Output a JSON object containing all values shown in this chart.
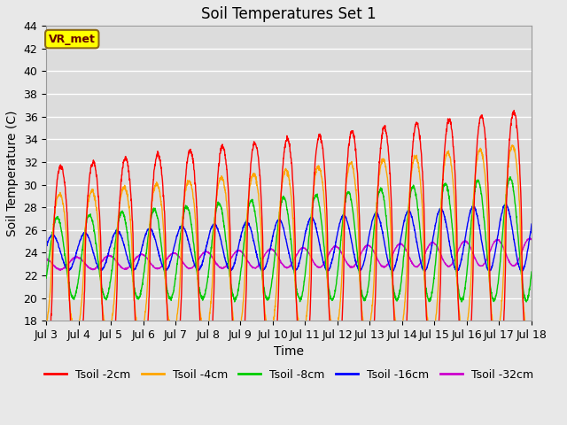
{
  "title": "Soil Temperatures Set 1",
  "xlabel": "Time",
  "ylabel": "Soil Temperature (C)",
  "ylim": [
    18,
    44
  ],
  "yticks": [
    18,
    20,
    22,
    24,
    26,
    28,
    30,
    32,
    34,
    36,
    38,
    40,
    42,
    44
  ],
  "x_labels": [
    "Jul 3",
    "Jul 4",
    "Jul 5",
    "Jul 6",
    "Jul 7",
    "Jul 8",
    "Jul 9",
    "Jul 10",
    "Jul 11",
    "Jul 12",
    "Jul 13",
    "Jul 14",
    "Jul 15",
    "Jul 16",
    "Jul 17",
    "Jul 18"
  ],
  "series": [
    {
      "label": "Tsoil -2cm",
      "color": "#ff0000"
    },
    {
      "label": "Tsoil -4cm",
      "color": "#ffa500"
    },
    {
      "label": "Tsoil -8cm",
      "color": "#00cc00"
    },
    {
      "label": "Tsoil -16cm",
      "color": "#0000ff"
    },
    {
      "label": "Tsoil -32cm",
      "color": "#cc00cc"
    }
  ],
  "annotation_text": "VR_met",
  "annotation_box_color": "#ffff00",
  "annotation_border_color": "#8B6914",
  "figsize": [
    6.4,
    4.8
  ],
  "dpi": 100,
  "title_fontsize": 12,
  "axis_label_fontsize": 10,
  "tick_fontsize": 9,
  "legend_fontsize": 9
}
